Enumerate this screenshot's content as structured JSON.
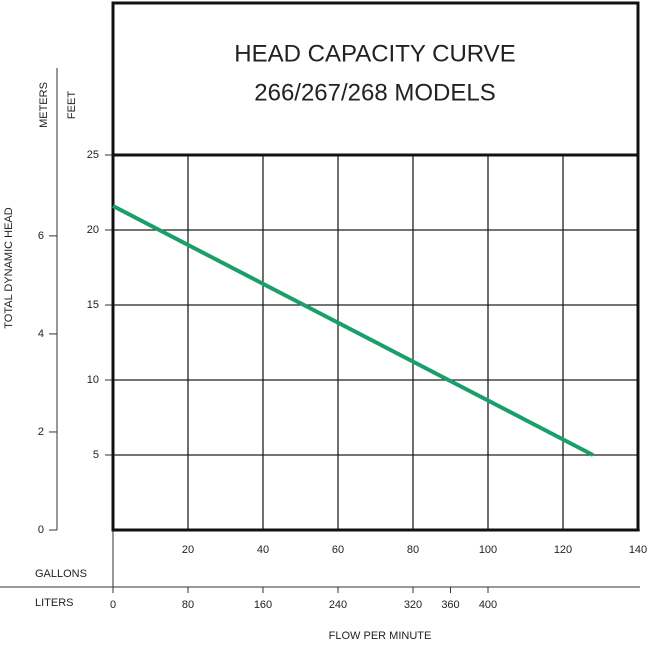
{
  "chart_data": {
    "type": "line",
    "title": "HEAD CAPACITY CURVE",
    "subtitle": "266/267/268 MODELS",
    "y_label": "TOTAL DYNAMIC HEAD",
    "y_unit": "FEET",
    "y2_unit": "METERS",
    "x_label": "FLOW PER MINUTE",
    "x_unit": "GALLONS",
    "x2_unit": "LITERS",
    "x": [
      0,
      128
    ],
    "values": [
      21.6,
      5
    ],
    "color": "#1a9e6a",
    "xlim": [
      0,
      140
    ],
    "xticks": [
      20,
      40,
      60,
      80,
      100,
      120,
      140
    ],
    "x2lim": [
      0,
      560
    ],
    "x2ticks": [
      0,
      80,
      160,
      240,
      320,
      360,
      400
    ],
    "ylim": [
      0,
      25
    ],
    "yticks": [
      5,
      10,
      15,
      20,
      25
    ],
    "y2lim": [
      0,
      7.65
    ],
    "y2ticks": [
      0,
      2,
      4,
      6
    ],
    "grid": true
  }
}
